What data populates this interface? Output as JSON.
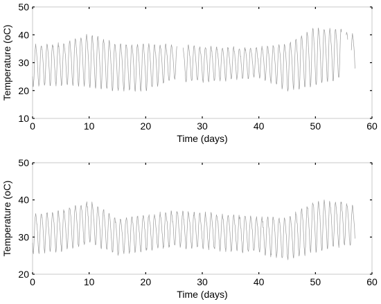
{
  "chart_data": [
    {
      "type": "line",
      "xlabel": "Time (days)",
      "ylabel": "Temperature (oC)",
      "xlim": [
        0,
        60
      ],
      "ylim": [
        10,
        50
      ],
      "xticks": [
        0,
        10,
        20,
        30,
        40,
        50,
        60
      ],
      "yticks": [
        10,
        20,
        30,
        40,
        50
      ],
      "grid": false,
      "series": [
        {
          "color": "#9a9a9a",
          "gaps": [
            [
              25.6,
              26.6
            ],
            [
              54.6,
              55.4
            ],
            [
              55.7,
              56.3
            ]
          ],
          "baseline": [
            [
              0,
              29.5
            ],
            [
              5,
              30
            ],
            [
              10,
              31.5
            ],
            [
              15,
              29
            ],
            [
              20,
              29
            ],
            [
              25,
              30.5
            ],
            [
              30,
              30
            ],
            [
              35,
              30
            ],
            [
              40,
              30.5
            ],
            [
              45,
              29
            ],
            [
              50,
              33
            ],
            [
              55,
              34
            ],
            [
              57,
              33
            ]
          ],
          "amplitude": [
            [
              0,
              7
            ],
            [
              5,
              7
            ],
            [
              10,
              9
            ],
            [
              15,
              8
            ],
            [
              20,
              8
            ],
            [
              25,
              6
            ],
            [
              30,
              6
            ],
            [
              35,
              5.5
            ],
            [
              40,
              5
            ],
            [
              45,
              8
            ],
            [
              50,
              10
            ],
            [
              55,
              8
            ],
            [
              57,
              7
            ]
          ],
          "x_end": 57
        }
      ]
    },
    {
      "type": "line",
      "xlabel": "Time (days)",
      "ylabel": "Temperature (oC)",
      "xlim": [
        0,
        60
      ],
      "ylim": [
        20,
        50
      ],
      "xticks": [
        0,
        10,
        20,
        30,
        40,
        50,
        60
      ],
      "yticks": [
        20,
        30,
        40,
        50
      ],
      "grid": false,
      "series": [
        {
          "color": "#9a9a9a",
          "gaps": [],
          "baseline": [
            [
              0,
              31.5
            ],
            [
              5,
              32
            ],
            [
              10,
              34.5
            ],
            [
              15,
              30.5
            ],
            [
              20,
              31.5
            ],
            [
              25,
              32.5
            ],
            [
              30,
              32
            ],
            [
              35,
              31.5
            ],
            [
              40,
              31
            ],
            [
              45,
              30
            ],
            [
              50,
              33.5
            ],
            [
              55,
              34
            ],
            [
              57,
              33
            ]
          ],
          "amplitude": [
            [
              0,
              5
            ],
            [
              5,
              5
            ],
            [
              10,
              5.5
            ],
            [
              15,
              4.5
            ],
            [
              20,
              4.5
            ],
            [
              25,
              4.5
            ],
            [
              30,
              4.5
            ],
            [
              35,
              4.5
            ],
            [
              40,
              4.5
            ],
            [
              45,
              5.5
            ],
            [
              50,
              6.5
            ],
            [
              55,
              5.5
            ],
            [
              57,
              5
            ]
          ],
          "x_end": 57
        }
      ]
    }
  ]
}
